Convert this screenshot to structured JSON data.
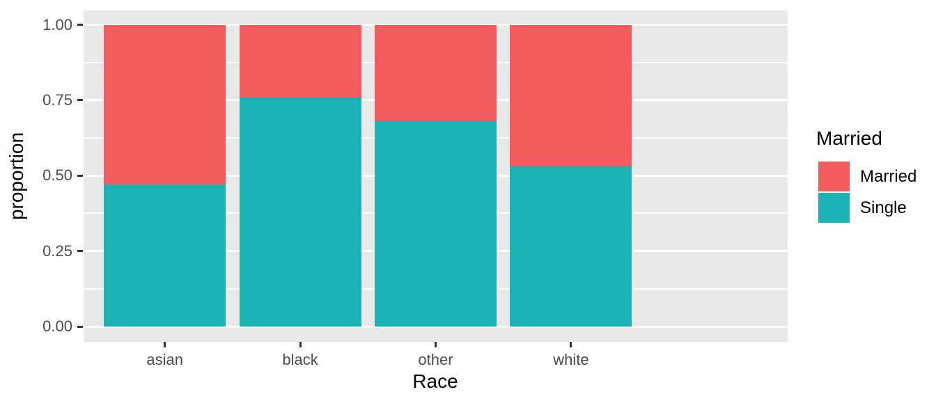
{
  "chart_data": {
    "type": "bar",
    "subtype": "stacked-proportion",
    "title": "",
    "xlabel": "Race",
    "ylabel": "proportion",
    "categories": [
      "asian",
      "black",
      "other",
      "white"
    ],
    "series": [
      {
        "name": "Married",
        "color": "#F25C5C",
        "values": [
          0.53,
          0.24,
          0.32,
          0.47
        ]
      },
      {
        "name": "Single",
        "color": "#1AB2B5",
        "values": [
          0.47,
          0.76,
          0.68,
          0.53
        ]
      }
    ],
    "stack_order_bottom_to_top": [
      "Single",
      "Married"
    ],
    "ylim": [
      0,
      1
    ],
    "y_major_ticks": [
      {
        "value": 0.0,
        "label": "0.00"
      },
      {
        "value": 0.25,
        "label": "0.25"
      },
      {
        "value": 0.5,
        "label": "0.50"
      },
      {
        "value": 0.75,
        "label": "0.75"
      },
      {
        "value": 1.0,
        "label": "1.00"
      }
    ],
    "y_minor_ticks": [
      0.125,
      0.375,
      0.625,
      0.875
    ],
    "grid": true,
    "legend_position": "right"
  },
  "legend": {
    "title": "Married",
    "items": [
      {
        "label": "Married",
        "color": "#F25C5C"
      },
      {
        "label": "Single",
        "color": "#1AB2B5"
      }
    ]
  },
  "theme": {
    "panel_bg": "#E8E8E8",
    "grid_color": "#FFFFFF",
    "tick_label_color": "#4D4D4D",
    "tick_mark_color": "#333333",
    "axis_title_color": "#000000",
    "figure_bg": "#FFFFFF"
  }
}
